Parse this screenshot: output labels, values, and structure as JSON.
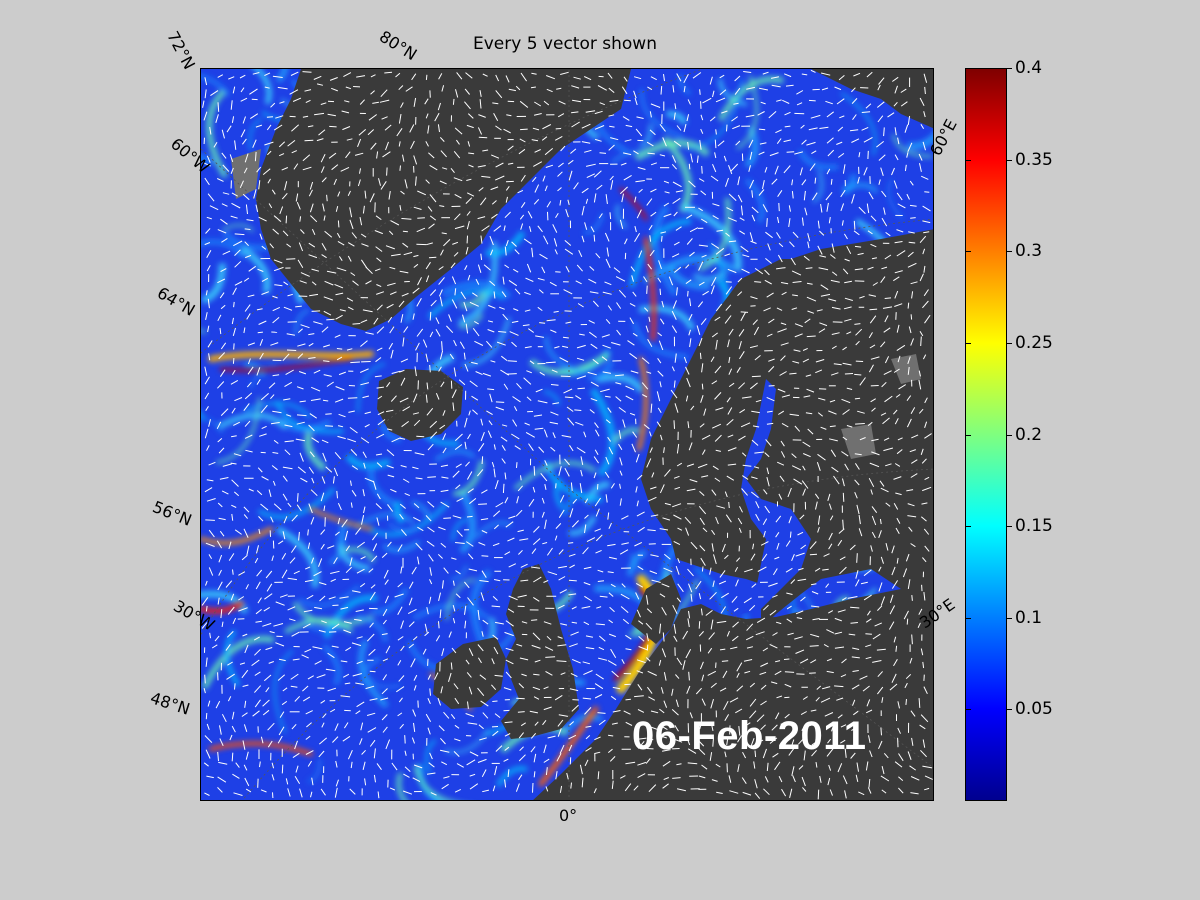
{
  "title": "Every 5 vector shown",
  "date_stamp": "06-Feb-2011",
  "colors": {
    "background": "#cccccc",
    "land": "#3a3a3a",
    "ocean_low": "#1a3cff",
    "current_high": "#c00000"
  },
  "graticule_labels": {
    "lat_72": "72°N",
    "lon_60w": "60°W",
    "lat_64": "64°N",
    "lat_56": "56°N",
    "lon_30w": "30°W",
    "lat_48": "48°N",
    "lon_0": "0°",
    "lat_80": "80°N",
    "lon_60e": "60°E",
    "lon_30e": "30°E"
  },
  "colorbar": {
    "min": 0,
    "max": 0.4,
    "ticks": [
      "0.4",
      "0.35",
      "0.3",
      "0.25",
      "0.2",
      "0.15",
      "0.1",
      "0.05"
    ]
  }
}
